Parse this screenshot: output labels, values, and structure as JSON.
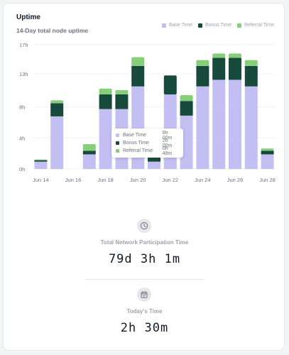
{
  "header": {
    "title": "Uptime",
    "subtitle": "14-Day total node uptime"
  },
  "colors": {
    "base": "#c4bff3",
    "bonus": "#174a3a",
    "referral": "#86cf7a"
  },
  "legend": [
    {
      "label": "Base Time",
      "color": "#c4bff3"
    },
    {
      "label": "Bonus Time",
      "color": "#174a3a"
    },
    {
      "label": "Referral Time",
      "color": "#86cf7a"
    }
  ],
  "chart_data": {
    "type": "bar",
    "stacked": true,
    "ylim": [
      0,
      17
    ],
    "y_ticks": [
      "17h",
      "13h",
      "8h",
      "4h",
      "0h"
    ],
    "y_tick_values": [
      17,
      13,
      8.5,
      4.25,
      0
    ],
    "categories": [
      "Jun 14",
      "Jun 15",
      "Jun 16",
      "Jun 17",
      "Jun 18",
      "Jun 19",
      "Jun 20",
      "Jun 21",
      "Jun 22",
      "Jun 23",
      "Jun 24",
      "Jun 25",
      "Jun 26",
      "Jun 27",
      "Jun 28"
    ],
    "x_tick_labels": [
      "Jun 14",
      "",
      "Jun 16",
      "",
      "Jun 18",
      "",
      "Jun 20",
      "",
      "Jun 22",
      "",
      "Jun 24",
      "",
      "Jun 26",
      "",
      "Jun 28"
    ],
    "series": [
      {
        "name": "Base Time",
        "values": [
          1.0,
          7.2,
          0,
          2.0,
          8.2,
          8.2,
          11.3,
          1.0,
          10.2,
          7.3,
          11.3,
          12.2,
          12.2,
          11.3,
          2.0
        ]
      },
      {
        "name": "Bonus Time",
        "values": [
          0.2,
          1.8,
          0,
          0.5,
          2.0,
          2.0,
          2.8,
          0.6,
          2.6,
          2.0,
          2.8,
          3.0,
          3.0,
          2.8,
          0.5
        ]
      },
      {
        "name": "Referral Time",
        "values": [
          0.1,
          0.4,
          0,
          0.9,
          0.8,
          0.6,
          1.2,
          0.8,
          0,
          0.8,
          0.8,
          0.6,
          0.6,
          0.8,
          0.3
        ]
      }
    ]
  },
  "tooltip": {
    "rows": [
      {
        "label": "Base Time",
        "value": "8h  00m",
        "color": "#c4bff3"
      },
      {
        "label": "Bonus Time",
        "value": "2h  00m",
        "color": "#174a3a"
      },
      {
        "label": "Referral Time",
        "value": "0h  48m",
        "color": "#86cf7a"
      }
    ]
  },
  "stats": {
    "network_label": "Total Network Participation Time",
    "network_value": "79d 3h 1m",
    "today_label": "Today's Time",
    "today_value": "2h 30m"
  }
}
